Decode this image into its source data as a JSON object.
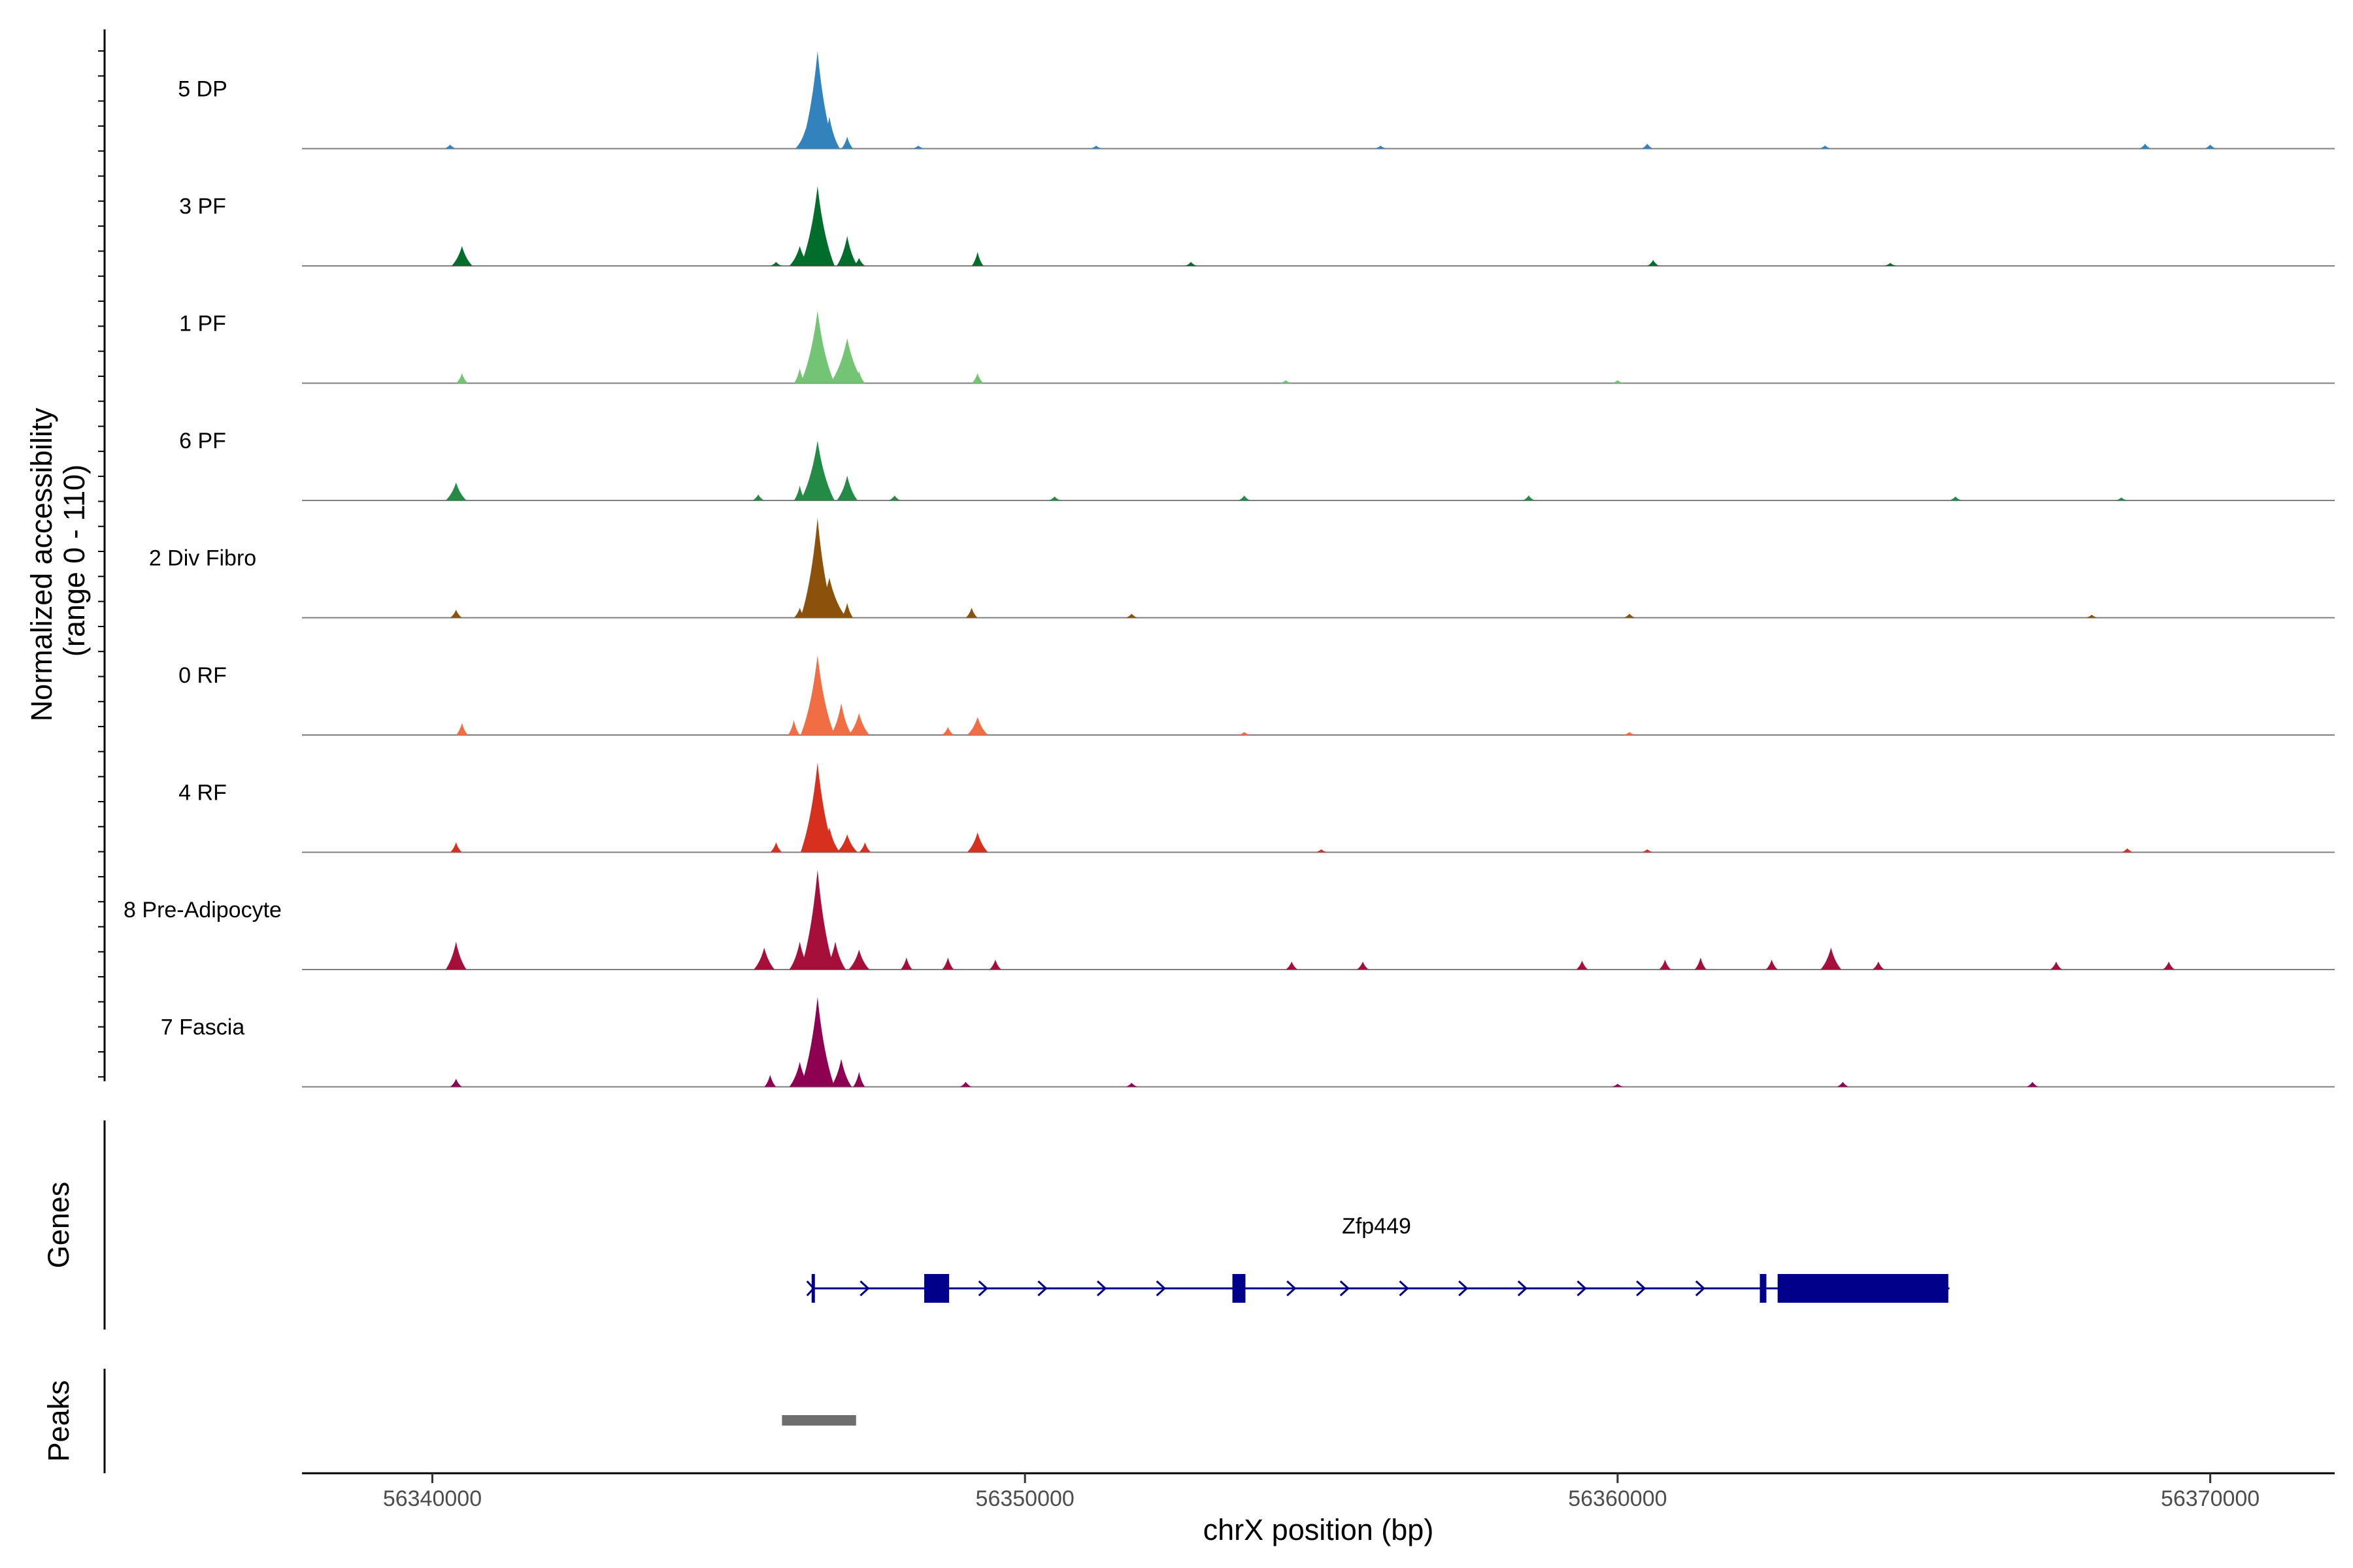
{
  "chart_data": {
    "type": "area",
    "title": "",
    "xlabel": "chrX position (bp)",
    "ylabel": "Normalized accessibility\n(range 0 - 110)",
    "ylabel_lines": [
      "Normalized accessibility",
      "(range 0 - 110)"
    ],
    "ylim": [
      0,
      110
    ],
    "xlim": [
      56337800,
      56372100
    ],
    "x_ticks": [
      56340000,
      56350000,
      56360000,
      56370000
    ],
    "x_tick_labels": [
      "56340000",
      "56350000",
      "56360000",
      "56370000"
    ],
    "tracks": [
      {
        "name": "5 DP",
        "color": "#3182BD",
        "peaks": [
          {
            "x": 56340300,
            "h": 4
          },
          {
            "x": 56346300,
            "h": 20
          },
          {
            "x": 56346500,
            "h": 98
          },
          {
            "x": 56346700,
            "h": 32
          },
          {
            "x": 56347000,
            "h": 12
          },
          {
            "x": 56348200,
            "h": 3
          },
          {
            "x": 56351200,
            "h": 3
          },
          {
            "x": 56356000,
            "h": 3
          },
          {
            "x": 56360500,
            "h": 5
          },
          {
            "x": 56363500,
            "h": 3
          },
          {
            "x": 56368900,
            "h": 5
          },
          {
            "x": 56370000,
            "h": 4
          }
        ]
      },
      {
        "name": "3 PF",
        "color": "#006D2C",
        "peaks": [
          {
            "x": 56340500,
            "h": 20
          },
          {
            "x": 56345800,
            "h": 4
          },
          {
            "x": 56346200,
            "h": 20
          },
          {
            "x": 56346500,
            "h": 80
          },
          {
            "x": 56347000,
            "h": 30
          },
          {
            "x": 56347200,
            "h": 8
          },
          {
            "x": 56349200,
            "h": 14
          },
          {
            "x": 56352800,
            "h": 4
          },
          {
            "x": 56360600,
            "h": 6
          },
          {
            "x": 56364600,
            "h": 3
          }
        ]
      },
      {
        "name": "1 PF",
        "color": "#74C476",
        "peaks": [
          {
            "x": 56340500,
            "h": 10
          },
          {
            "x": 56346200,
            "h": 15
          },
          {
            "x": 56346500,
            "h": 73
          },
          {
            "x": 56347000,
            "h": 45
          },
          {
            "x": 56347200,
            "h": 12
          },
          {
            "x": 56349200,
            "h": 10
          },
          {
            "x": 56354400,
            "h": 3
          },
          {
            "x": 56360000,
            "h": 3
          }
        ]
      },
      {
        "name": "6 PF",
        "color": "#238B45",
        "peaks": [
          {
            "x": 56340400,
            "h": 18
          },
          {
            "x": 56345500,
            "h": 6
          },
          {
            "x": 56346200,
            "h": 15
          },
          {
            "x": 56346500,
            "h": 60
          },
          {
            "x": 56347000,
            "h": 25
          },
          {
            "x": 56347800,
            "h": 5
          },
          {
            "x": 56350500,
            "h": 4
          },
          {
            "x": 56353700,
            "h": 5
          },
          {
            "x": 56358500,
            "h": 5
          },
          {
            "x": 56365700,
            "h": 4
          },
          {
            "x": 56368500,
            "h": 3
          }
        ]
      },
      {
        "name": "2 Div Fibro",
        "color": "#8C510A",
        "peaks": [
          {
            "x": 56340400,
            "h": 8
          },
          {
            "x": 56346200,
            "h": 10
          },
          {
            "x": 56346500,
            "h": 100
          },
          {
            "x": 56346700,
            "h": 40
          },
          {
            "x": 56347000,
            "h": 15
          },
          {
            "x": 56349100,
            "h": 10
          },
          {
            "x": 56351800,
            "h": 4
          },
          {
            "x": 56360200,
            "h": 4
          },
          {
            "x": 56368000,
            "h": 3
          }
        ]
      },
      {
        "name": "0 RF",
        "color": "#F16D43",
        "peaks": [
          {
            "x": 56340500,
            "h": 12
          },
          {
            "x": 56346100,
            "h": 15
          },
          {
            "x": 56346500,
            "h": 80
          },
          {
            "x": 56346900,
            "h": 32
          },
          {
            "x": 56347200,
            "h": 22
          },
          {
            "x": 56348700,
            "h": 8
          },
          {
            "x": 56349200,
            "h": 18
          },
          {
            "x": 56353700,
            "h": 3
          },
          {
            "x": 56360200,
            "h": 3
          }
        ]
      },
      {
        "name": "4 RF",
        "color": "#D7301F",
        "peaks": [
          {
            "x": 56340400,
            "h": 10
          },
          {
            "x": 56345800,
            "h": 10
          },
          {
            "x": 56346500,
            "h": 90
          },
          {
            "x": 56346700,
            "h": 25
          },
          {
            "x": 56347000,
            "h": 18
          },
          {
            "x": 56347300,
            "h": 10
          },
          {
            "x": 56349200,
            "h": 20
          },
          {
            "x": 56355000,
            "h": 3
          },
          {
            "x": 56360500,
            "h": 3
          },
          {
            "x": 56368600,
            "h": 4
          }
        ]
      },
      {
        "name": "8 Pre-Adipocyte",
        "color": "#A50F3A",
        "peaks": [
          {
            "x": 56340400,
            "h": 28
          },
          {
            "x": 56345600,
            "h": 22
          },
          {
            "x": 56346200,
            "h": 28
          },
          {
            "x": 56346500,
            "h": 100
          },
          {
            "x": 56346800,
            "h": 28
          },
          {
            "x": 56347200,
            "h": 20
          },
          {
            "x": 56348000,
            "h": 12
          },
          {
            "x": 56348700,
            "h": 12
          },
          {
            "x": 56349500,
            "h": 10
          },
          {
            "x": 56354500,
            "h": 8
          },
          {
            "x": 56355700,
            "h": 8
          },
          {
            "x": 56359400,
            "h": 9
          },
          {
            "x": 56360800,
            "h": 10
          },
          {
            "x": 56361400,
            "h": 12
          },
          {
            "x": 56362600,
            "h": 10
          },
          {
            "x": 56363600,
            "h": 22
          },
          {
            "x": 56364400,
            "h": 8
          },
          {
            "x": 56367400,
            "h": 8
          },
          {
            "x": 56369300,
            "h": 8
          }
        ]
      },
      {
        "name": "7 Fascia",
        "color": "#8E0152",
        "peaks": [
          {
            "x": 56340400,
            "h": 8
          },
          {
            "x": 56345700,
            "h": 12
          },
          {
            "x": 56346200,
            "h": 25
          },
          {
            "x": 56346500,
            "h": 90
          },
          {
            "x": 56346900,
            "h": 28
          },
          {
            "x": 56347200,
            "h": 15
          },
          {
            "x": 56349000,
            "h": 5
          },
          {
            "x": 56351800,
            "h": 4
          },
          {
            "x": 56360000,
            "h": 3
          },
          {
            "x": 56363800,
            "h": 5
          },
          {
            "x": 56367000,
            "h": 5
          }
        ]
      }
    ],
    "genes_track_label": "Genes",
    "peaks_track_label": "Peaks",
    "gene": {
      "name": "Zfp449",
      "strand": "+",
      "start": 56346400,
      "end": 56365600,
      "exons": [
        {
          "start": 56346400,
          "end": 56346430
        },
        {
          "start": 56348300,
          "end": 56348720
        },
        {
          "start": 56353500,
          "end": 56353720
        },
        {
          "start": 56362400,
          "end": 56362510
        },
        {
          "start": 56362700,
          "end": 56365580
        }
      ],
      "arrow_positions": [
        56347300,
        56349300,
        56350300,
        56351300,
        56352300,
        56354500,
        56355400,
        56356400,
        56357400,
        56358400,
        56359400,
        56360400,
        56361400
      ]
    },
    "peak_regions": [
      {
        "start": 56345900,
        "end": 56347150,
        "color": "#6E6E6E"
      }
    ]
  }
}
